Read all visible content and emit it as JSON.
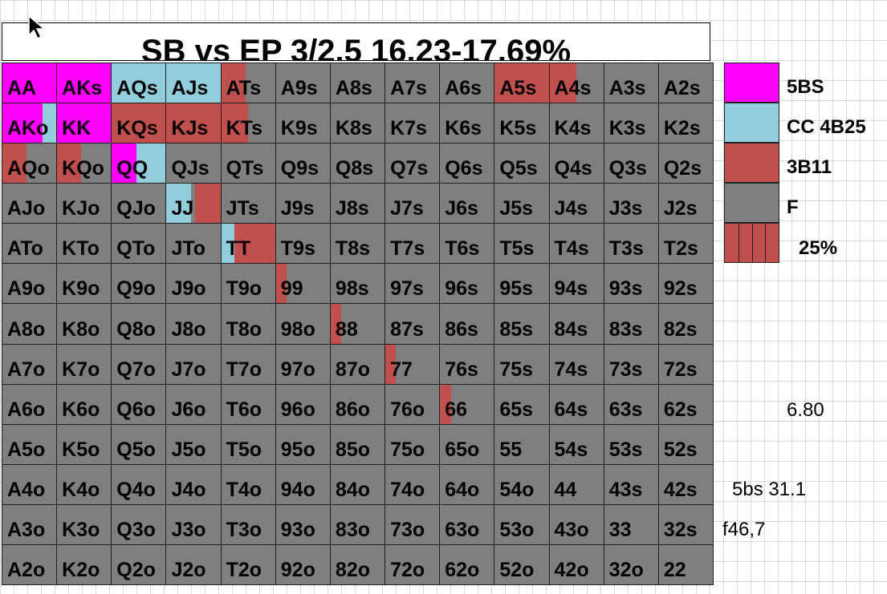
{
  "title": "SB vs EP 3/2.5 16.23-17.69%",
  "colors": {
    "5BS": "#ff00ff",
    "CC 4B25": "#92cddc",
    "3B11": "#c0504d",
    "F": "#7f7f7f"
  },
  "legend": [
    {
      "label": "5BS",
      "color": "#ff00ff"
    },
    {
      "label": "CC 4B25",
      "color": "#92cddc"
    },
    {
      "label": "3B11",
      "color": "#c0504d"
    },
    {
      "label": "F",
      "color": "#7f7f7f"
    },
    {
      "label": "25%",
      "color": "#c0504d",
      "pattern": "quarter-stripes"
    }
  ],
  "notes": [
    "6.80",
    "5bs 31.1",
    "f46,7"
  ],
  "hands": [
    [
      "AA",
      "AKs",
      "AQs",
      "AJs",
      "ATs",
      "A9s",
      "A8s",
      "A7s",
      "A6s",
      "A5s",
      "A4s",
      "A3s",
      "A2s"
    ],
    [
      "AKo",
      "KK",
      "KQs",
      "KJs",
      "KTs",
      "K9s",
      "K8s",
      "K7s",
      "K6s",
      "K5s",
      "K4s",
      "K3s",
      "K2s"
    ],
    [
      "AQo",
      "KQo",
      "QQ",
      "QJs",
      "QTs",
      "Q9s",
      "Q8s",
      "Q7s",
      "Q6s",
      "Q5s",
      "Q4s",
      "Q3s",
      "Q2s"
    ],
    [
      "AJo",
      "KJo",
      "QJo",
      "JJ",
      "JTs",
      "J9s",
      "J8s",
      "J7s",
      "J6s",
      "J5s",
      "J4s",
      "J3s",
      "J2s"
    ],
    [
      "ATo",
      "KTo",
      "QTo",
      "JTo",
      "TT",
      "T9s",
      "T8s",
      "T7s",
      "T6s",
      "T5s",
      "T4s",
      "T3s",
      "T2s"
    ],
    [
      "A9o",
      "K9o",
      "Q9o",
      "J9o",
      "T9o",
      "99",
      "98s",
      "97s",
      "96s",
      "95s",
      "94s",
      "93s",
      "92s"
    ],
    [
      "A8o",
      "K8o",
      "Q8o",
      "J8o",
      "T8o",
      "98o",
      "88",
      "87s",
      "86s",
      "85s",
      "84s",
      "83s",
      "82s"
    ],
    [
      "A7o",
      "K7o",
      "Q7o",
      "J7o",
      "T7o",
      "97o",
      "87o",
      "77",
      "76s",
      "75s",
      "74s",
      "73s",
      "72s"
    ],
    [
      "A6o",
      "K6o",
      "Q6o",
      "J6o",
      "T6o",
      "96o",
      "86o",
      "76o",
      "66",
      "65s",
      "64s",
      "63s",
      "62s"
    ],
    [
      "A5o",
      "K5o",
      "Q5o",
      "J5o",
      "T5o",
      "95o",
      "85o",
      "75o",
      "65o",
      "55",
      "54s",
      "53s",
      "52s"
    ],
    [
      "A4o",
      "K4o",
      "Q4o",
      "J4o",
      "T4o",
      "94o",
      "84o",
      "74o",
      "64o",
      "54o",
      "44",
      "43s",
      "42s"
    ],
    [
      "A3o",
      "K3o",
      "Q3o",
      "J3o",
      "T3o",
      "93o",
      "83o",
      "73o",
      "63o",
      "53o",
      "43o",
      "33",
      "32s"
    ],
    [
      "A2o",
      "K2o",
      "Q2o",
      "J2o",
      "T2o",
      "92o",
      "82o",
      "72o",
      "62o",
      "52o",
      "42o",
      "32o",
      "22"
    ]
  ],
  "mix": {
    "AA": [
      [
        "5BS",
        1
      ]
    ],
    "AKs": [
      [
        "5BS",
        1
      ]
    ],
    "AQs": [
      [
        "CC 4B25",
        1
      ]
    ],
    "AJs": [
      [
        "CC 4B25",
        1
      ]
    ],
    "ATs": [
      [
        "3B11",
        0.45
      ],
      [
        "F",
        0.55
      ]
    ],
    "A5s": [
      [
        "3B11",
        1
      ]
    ],
    "A4s": [
      [
        "3B11",
        0.5
      ],
      [
        "F",
        0.5
      ]
    ],
    "AKo": [
      [
        "5BS",
        0.75
      ],
      [
        "CC 4B25",
        0.25
      ]
    ],
    "KK": [
      [
        "5BS",
        1
      ]
    ],
    "KQs": [
      [
        "3B11",
        1
      ]
    ],
    "KJs": [
      [
        "3B11",
        1
      ]
    ],
    "KTs": [
      [
        "3B11",
        0.5
      ],
      [
        "F",
        0.5
      ]
    ],
    "AQo": [
      [
        "3B11",
        0.45
      ],
      [
        "F",
        0.55
      ]
    ],
    "KQo": [
      [
        "3B11",
        0.45
      ],
      [
        "F",
        0.55
      ]
    ],
    "QQ": [
      [
        "5BS",
        0.45
      ],
      [
        "CC 4B25",
        0.55
      ]
    ],
    "JJ": [
      [
        "CC 4B25",
        0.45
      ],
      [
        "F",
        0.08
      ],
      [
        "3B11",
        0.47
      ]
    ],
    "TT": [
      [
        "CC 4B25",
        0.25
      ],
      [
        "3B11",
        0.75
      ]
    ],
    "99": [
      [
        "3B11",
        0.2
      ],
      [
        "F",
        0.8
      ]
    ],
    "88": [
      [
        "3B11",
        0.2
      ],
      [
        "F",
        0.8
      ]
    ],
    "77": [
      [
        "3B11",
        0.2
      ],
      [
        "F",
        0.8
      ]
    ],
    "66": [
      [
        "3B11",
        0.2
      ],
      [
        "F",
        0.8
      ]
    ]
  }
}
